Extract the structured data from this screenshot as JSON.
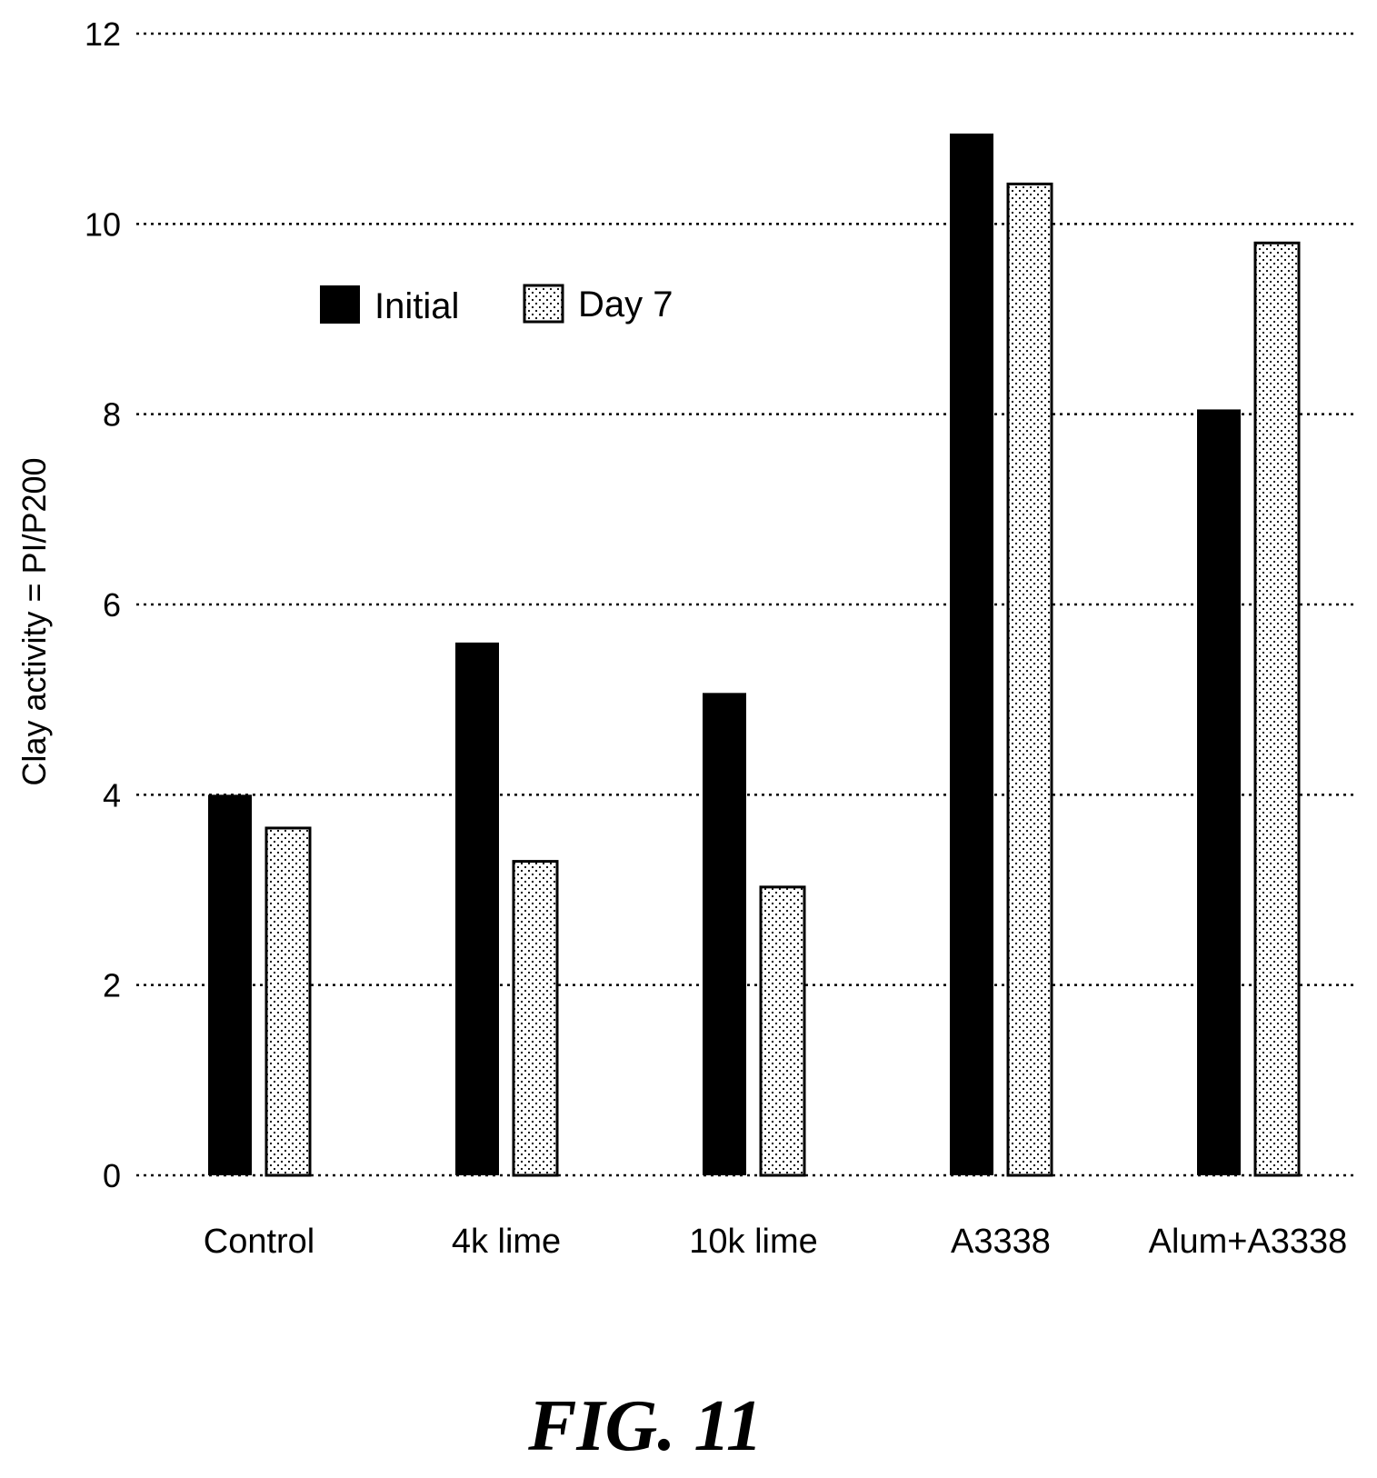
{
  "chart_data": {
    "type": "bar",
    "categories": [
      "Control",
      "4k lime",
      "10k lime",
      "A3338",
      "Alum+A3338"
    ],
    "series": [
      {
        "name": "Initial",
        "values": [
          4.0,
          5.6,
          5.07,
          10.95,
          8.05
        ],
        "fill": "solid",
        "color": "#000000"
      },
      {
        "name": "Day 7",
        "values": [
          3.65,
          3.3,
          3.03,
          10.42,
          9.8
        ],
        "fill": "stipple",
        "color": "#ffffff"
      }
    ],
    "ylabel": "Clay activity = PI/P200",
    "xlabel": "",
    "ylim": [
      0,
      12
    ],
    "yticks": [
      0,
      2,
      4,
      6,
      8,
      10,
      12
    ],
    "grid": "dotted-horizontal",
    "legend_position": "top-left"
  },
  "caption": "FIG. 11"
}
